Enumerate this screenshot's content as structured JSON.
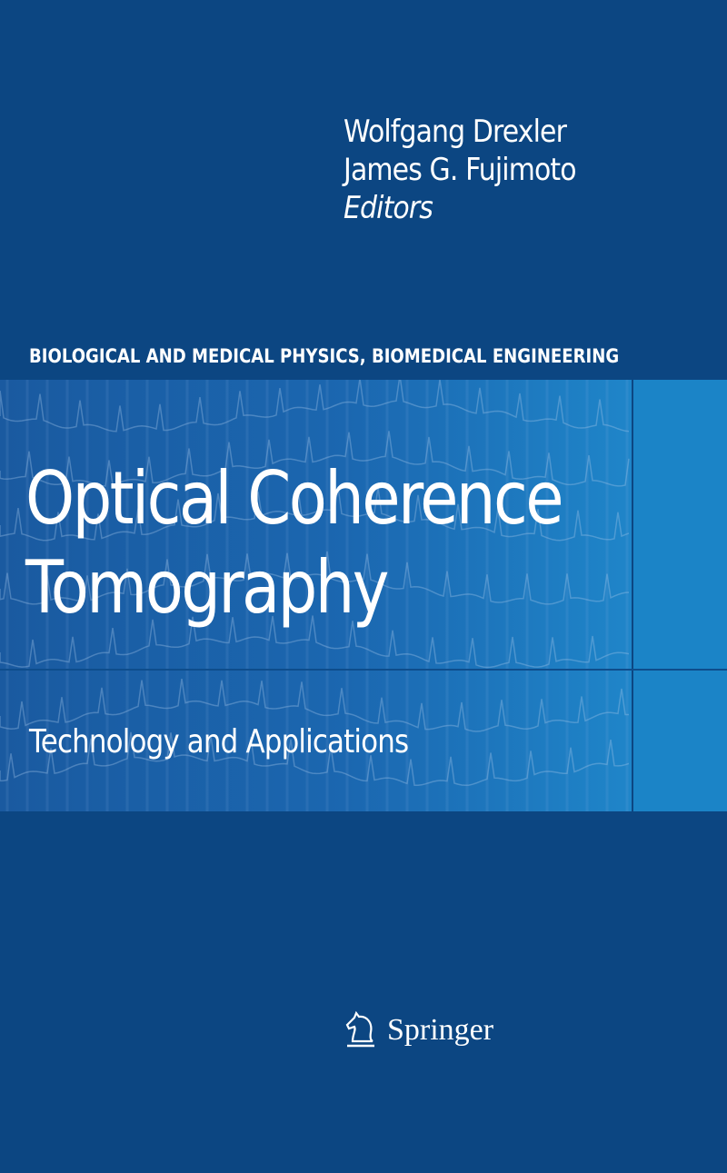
{
  "cover": {
    "editors": [
      "Wolfgang Drexler",
      "James G. Fujimoto"
    ],
    "editors_role": "Editors",
    "series": "BIOLOGICAL AND MEDICAL PHYSICS, BIOMEDICAL ENGINEERING",
    "title_lines": [
      "Optical Coherence",
      "Tomography"
    ],
    "subtitle": "Technology and Applications",
    "publisher": "Springer",
    "publisher_logo_icon": "knight-chess-horse-icon",
    "colors": {
      "background": "#0c4682",
      "panel": "#1b67b0",
      "panel_side": "#1b84c7",
      "text": "#ffffff"
    }
  }
}
